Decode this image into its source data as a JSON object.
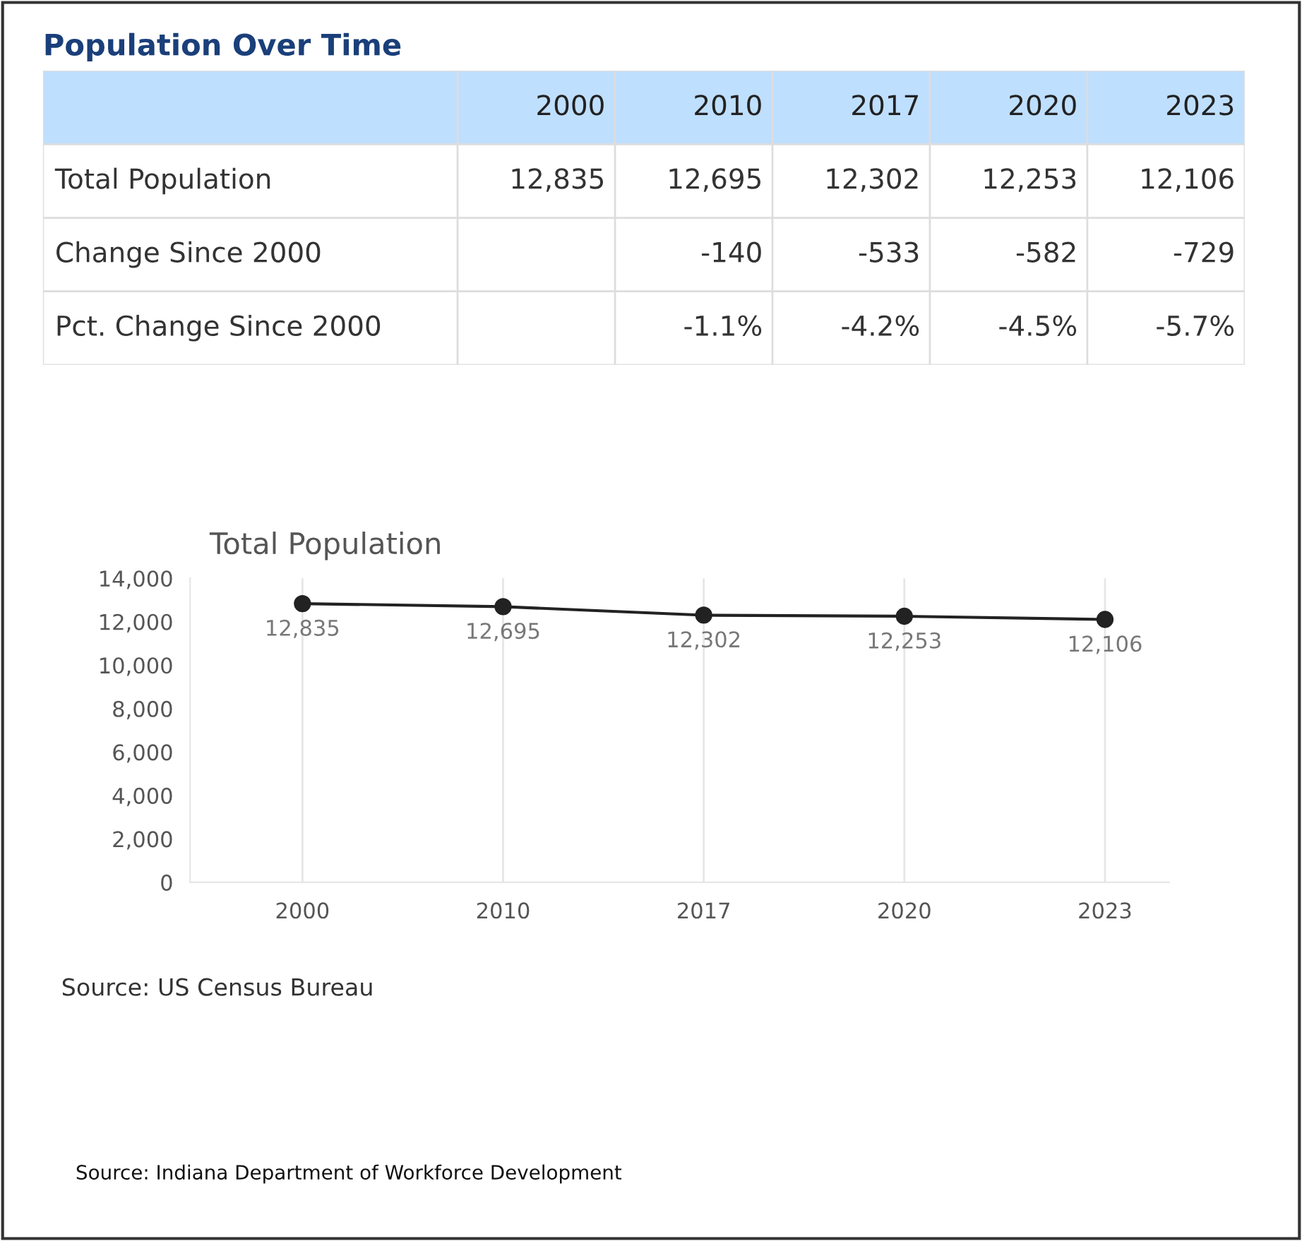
{
  "chart_data": [
    {
      "type": "other",
      "title": "Population Over Time",
      "categories": [
        "2000",
        "2010",
        "2017",
        "2020",
        "2023"
      ],
      "y_categories": [
        "Total Population",
        "Change Since 2000",
        "Pct. Change Since 2000"
      ],
      "cell_labels": [
        [
          "12,835",
          "12,695",
          "12,302",
          "12,253",
          "12,106"
        ],
        [
          null,
          "-140",
          "-533",
          "-582",
          "-729"
        ],
        [
          null,
          "-1.1%",
          "-4.2%",
          "-4.5%",
          "-5.7%"
        ]
      ]
    },
    {
      "type": "line",
      "title": "Total Population",
      "categories": [
        "2000",
        "2010",
        "2017",
        "2020",
        "2023"
      ],
      "series": [
        {
          "color": "#222222",
          "values": [
            12835,
            12695,
            12302,
            12253,
            12106
          ],
          "value_labels": [
            "12,835",
            "12,695",
            "12,302",
            "12,253",
            "12,106"
          ]
        }
      ],
      "ylim": [
        0,
        14000
      ],
      "yticks": [
        {
          "value": 0,
          "label": "0"
        },
        {
          "value": 2000,
          "label": "2,000"
        },
        {
          "value": 4000,
          "label": "4,000"
        },
        {
          "value": 6000,
          "label": "6,000"
        },
        {
          "value": 8000,
          "label": "8,000"
        },
        {
          "value": 10000,
          "label": "10,000"
        },
        {
          "value": 12000,
          "label": "12,000"
        },
        {
          "value": 14000,
          "label": "14,000"
        }
      ],
      "grid": "x",
      "marker": "circle",
      "line_style": "solid",
      "legend": false,
      "annotations": [
        "Source: US Census Bureau",
        "Source: Indiana Department of Workforce Development"
      ]
    }
  ]
}
